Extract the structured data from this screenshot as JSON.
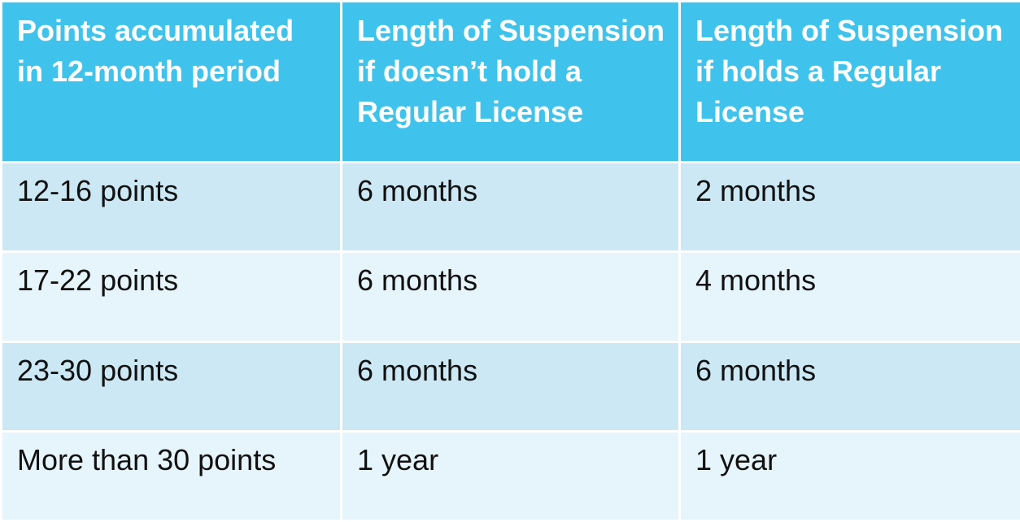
{
  "header": {
    "col1": "Points accumulated in 12-month period",
    "col2": "Length of Suspension if doesn’t hold a Regular License",
    "col3": "Length of Suspension if holds a Regular License"
  },
  "rows": [
    {
      "points": "12-16 points",
      "no_regular": "6 months",
      "regular": "2 months"
    },
    {
      "points": "17-22 points",
      "no_regular": "6 months",
      "regular": "4 months"
    },
    {
      "points": "23-30 points",
      "no_regular": "6 months",
      "regular": "6 months"
    },
    {
      "points": "More than 30 points",
      "no_regular": "1 year",
      "regular": "1 year"
    }
  ],
  "colors": {
    "header_bg": "#3fc3ec",
    "row_band_1": "#cbe8f4",
    "row_band_2": "#e6f4fb",
    "header_text": "#ffffff",
    "body_text": "#111111"
  }
}
